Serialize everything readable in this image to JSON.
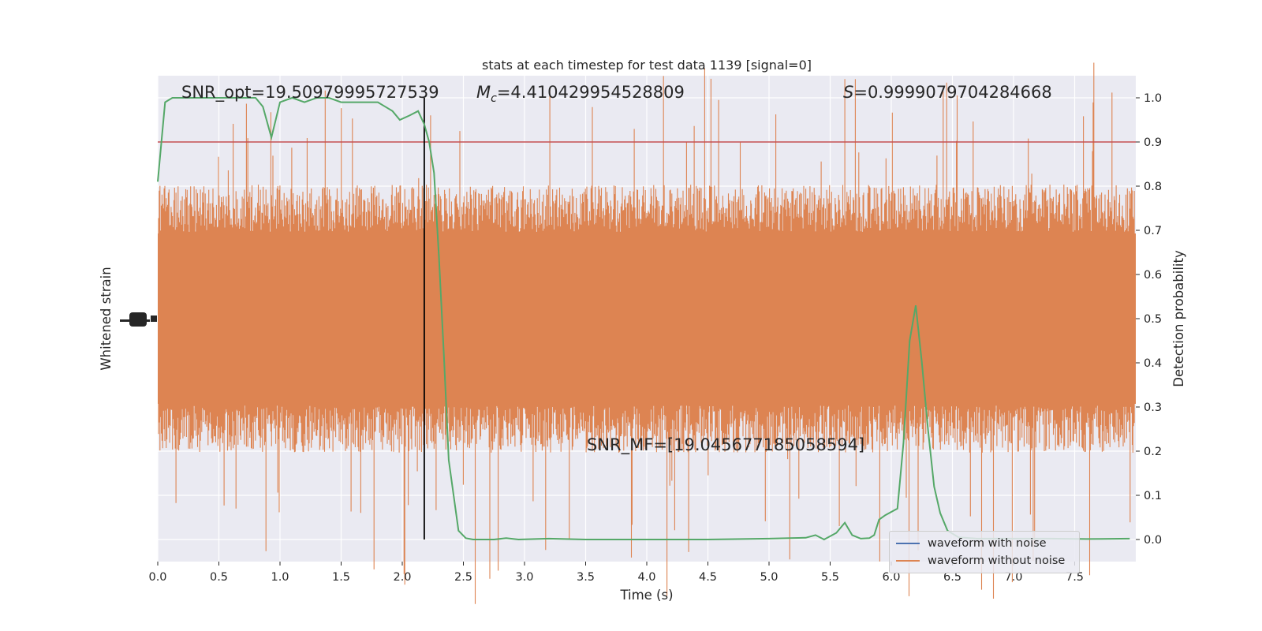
{
  "chart_data": {
    "type": "line",
    "title": "stats at each timestep for test data 1139 [signal=0]",
    "xlabel": "Time (s)",
    "ylabel_left": "Whitened strain",
    "ylabel_right": "Detection probability",
    "xlim": [
      0,
      8
    ],
    "ylim_right": [
      -0.05,
      1.05
    ],
    "x_ticks": [
      "0.0",
      "0.5",
      "1.0",
      "1.5",
      "2.0",
      "2.5",
      "3.0",
      "3.5",
      "4.0",
      "4.5",
      "5.0",
      "5.5",
      "6.0",
      "6.5",
      "7.0",
      "7.5"
    ],
    "y_right_ticks": [
      "0.0",
      "0.1",
      "0.2",
      "0.3",
      "0.4",
      "0.5",
      "0.6",
      "0.7",
      "0.8",
      "0.9",
      "1.0"
    ],
    "grid": true,
    "annotations": {
      "snr_opt": "SNR_opt=19.50979995727539",
      "mc_symbol": "M",
      "mc_sub": "c",
      "mc_value": "=4.410429954528809",
      "s_symbol": "S",
      "s_value": "=0.9999079704284668",
      "snr_mf": "SNR_MF=[19.045677185058594]"
    },
    "threshold": 0.9,
    "marker_time": 2.18,
    "series": [
      {
        "name": "waveform with noise",
        "color": "#4c72b0"
      },
      {
        "name": "waveform without noise",
        "color": "#dd8452"
      },
      {
        "color": "#55a868",
        "x": [
          0,
          0.06,
          0.12,
          0.2,
          0.3,
          0.4,
          0.5,
          0.6,
          0.7,
          0.8,
          0.86,
          0.93,
          1.0,
          1.1,
          1.2,
          1.3,
          1.4,
          1.5,
          1.6,
          1.7,
          1.8,
          1.86,
          1.92,
          1.98,
          2.06,
          2.13,
          2.18,
          2.22,
          2.26,
          2.3,
          2.34,
          2.38,
          2.42,
          2.46,
          2.52,
          2.58,
          2.64,
          2.75,
          2.85,
          2.95,
          3.2,
          3.5,
          4.0,
          4.5,
          5.0,
          5.3,
          5.38,
          5.45,
          5.55,
          5.62,
          5.68,
          5.75,
          5.82,
          5.86,
          5.9,
          5.95,
          6.05,
          6.1,
          6.15,
          6.2,
          6.25,
          6.3,
          6.35,
          6.4,
          6.46,
          6.55,
          6.7,
          7.0,
          7.3,
          7.6,
          7.95
        ],
        "values": [
          0.81,
          0.99,
          1.0,
          1.0,
          1.0,
          1.0,
          1.0,
          1.0,
          1.0,
          1.0,
          0.98,
          0.91,
          0.99,
          1.0,
          0.99,
          1.0,
          1.0,
          0.99,
          0.99,
          0.99,
          0.99,
          0.98,
          0.97,
          0.95,
          0.96,
          0.97,
          0.94,
          0.9,
          0.83,
          0.64,
          0.42,
          0.18,
          0.1,
          0.02,
          0.003,
          0.0,
          0.0,
          0.0,
          0.003,
          0.0,
          0.002,
          0.0,
          0.0,
          0.0,
          0.002,
          0.004,
          0.01,
          0.0,
          0.015,
          0.038,
          0.01,
          0.002,
          0.003,
          0.01,
          0.045,
          0.055,
          0.07,
          0.22,
          0.45,
          0.53,
          0.4,
          0.25,
          0.12,
          0.06,
          0.02,
          0.005,
          0.002,
          0.002,
          0.002,
          0.001,
          0.002
        ]
      }
    ]
  },
  "colors": {
    "axes_bg": "#eaeaf2",
    "grid": "#ffffff",
    "strain": "#dd8452",
    "noise": "#4c72b0",
    "probability": "#55a868",
    "threshold": "#c44e52",
    "marker": "#000000"
  }
}
